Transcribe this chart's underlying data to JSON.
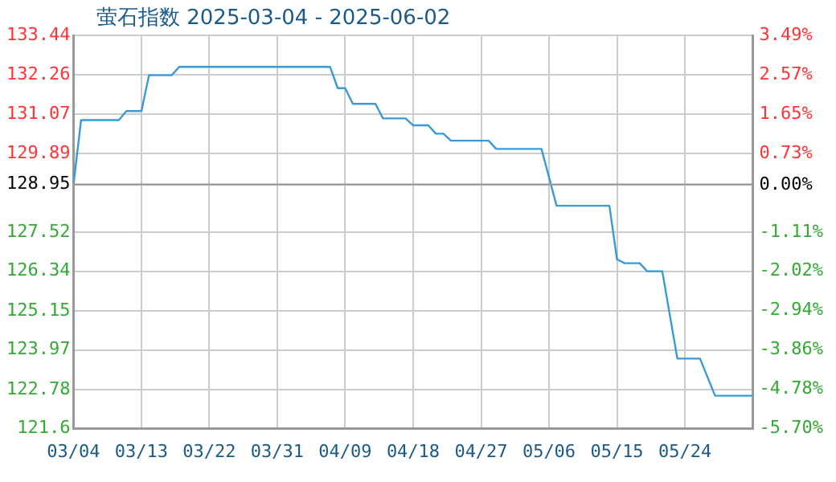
{
  "chart_data": {
    "type": "line",
    "title": "萤石指数 2025-03-04 - 2025-06-02",
    "x": [
      "2025-03-04",
      "2025-03-05",
      "2025-03-10",
      "2025-03-11",
      "2025-03-13",
      "2025-03-14",
      "2025-03-17",
      "2025-03-18",
      "2025-04-07",
      "2025-04-08",
      "2025-04-09",
      "2025-04-10",
      "2025-04-13",
      "2025-04-14",
      "2025-04-17",
      "2025-04-18",
      "2025-04-20",
      "2025-04-21",
      "2025-04-22",
      "2025-04-23",
      "2025-04-28",
      "2025-04-29",
      "2025-05-05",
      "2025-05-07",
      "2025-05-14",
      "2025-05-15",
      "2025-05-16",
      "2025-05-18",
      "2025-05-19",
      "2025-05-21",
      "2025-05-23",
      "2025-05-26",
      "2025-05-28",
      "2025-06-02"
    ],
    "series": [
      {
        "color": "#3a9ad9",
        "values": [
          128.95,
          130.89,
          130.89,
          131.16,
          131.16,
          132.24,
          132.24,
          132.49,
          132.49,
          131.85,
          131.85,
          131.38,
          131.38,
          130.94,
          130.94,
          130.73,
          130.73,
          130.48,
          130.48,
          130.27,
          130.27,
          130.02,
          130.02,
          128.31,
          128.31,
          126.7,
          126.58,
          126.58,
          126.34,
          126.34,
          123.71,
          123.71,
          122.59,
          122.59
        ]
      }
    ],
    "xlim": [
      "2025-03-04",
      "2025-06-02"
    ],
    "xticks": [
      {
        "value": "2025-03-04",
        "label": "03/04"
      },
      {
        "value": "2025-03-13",
        "label": "03/13"
      },
      {
        "value": "2025-03-22",
        "label": "03/22"
      },
      {
        "value": "2025-03-31",
        "label": "03/31"
      },
      {
        "value": "2025-04-09",
        "label": "04/09"
      },
      {
        "value": "2025-04-18",
        "label": "04/18"
      },
      {
        "value": "2025-04-27",
        "label": "04/27"
      },
      {
        "value": "2025-05-06",
        "label": "05/06"
      },
      {
        "value": "2025-05-15",
        "label": "05/15"
      },
      {
        "value": "2025-05-24",
        "label": "05/24"
      }
    ],
    "ylim": [
      121.6,
      133.44
    ],
    "yticks": [
      121.6,
      122.78,
      123.97,
      125.15,
      126.34,
      127.52,
      128.95,
      129.89,
      131.07,
      132.26,
      133.44
    ],
    "y2lim": [
      -5.7,
      3.49
    ],
    "y2ticks": [
      {
        "value": -5.7,
        "label": "-5.70%"
      },
      {
        "value": -4.78,
        "label": "-4.78%"
      },
      {
        "value": -3.86,
        "label": "-3.86%"
      },
      {
        "value": -2.94,
        "label": "-2.94%"
      },
      {
        "value": -2.02,
        "label": "-2.02%"
      },
      {
        "value": -1.11,
        "label": "-1.11%"
      },
      {
        "value": 0,
        "label": "0.00%"
      },
      {
        "value": 0.73,
        "label": "0.73%"
      },
      {
        "value": 1.65,
        "label": "1.65%"
      },
      {
        "value": 2.57,
        "label": "2.57%"
      },
      {
        "value": 3.49,
        "label": "3.49%"
      }
    ],
    "ref_lines": [
      {
        "axis": "y",
        "value": 128.95,
        "color": "#999999"
      }
    ],
    "grid": true,
    "legend": false,
    "marker": "none",
    "line_style": "solid"
  }
}
